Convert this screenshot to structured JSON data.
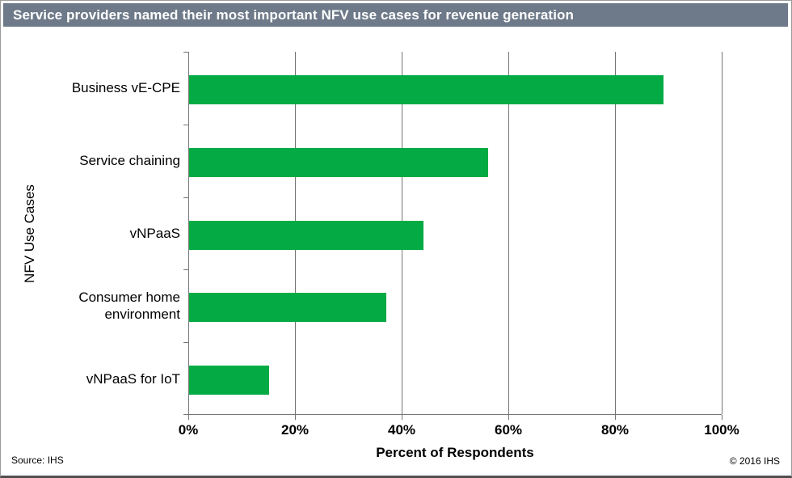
{
  "window": {
    "title": "Service providers named their most important NFV use cases for revenue generation"
  },
  "chart_data": {
    "type": "bar",
    "orientation": "horizontal",
    "title": "Service providers named their most important NFV use cases for revenue generation",
    "categories": [
      "Business vE-CPE",
      "Service chaining",
      "vNPaaS",
      "Consumer home environment",
      "vNPaaS for IoT"
    ],
    "values": [
      89,
      56,
      44,
      37,
      15
    ],
    "xlabel": "Percent of Respondents",
    "ylabel": "NFV Use Cases",
    "xlim": [
      0,
      100
    ],
    "x_tick_values": [
      0,
      20,
      40,
      60,
      80,
      100
    ],
    "x_ticks": [
      "0%",
      "20%",
      "40%",
      "60%",
      "80%",
      "100%"
    ],
    "grid": "vertical-only",
    "legend": "none",
    "bar_color": "#04AB45"
  },
  "footer": {
    "source": "Source: IHS",
    "copyright": "© 2016 IHS"
  },
  "colors": {
    "title_bar_bg": "#6E7A89",
    "title_text": "#FFFFFF",
    "bar_green": "#04AB45",
    "axis_gray": "#757575",
    "text_black": "#000000"
  }
}
